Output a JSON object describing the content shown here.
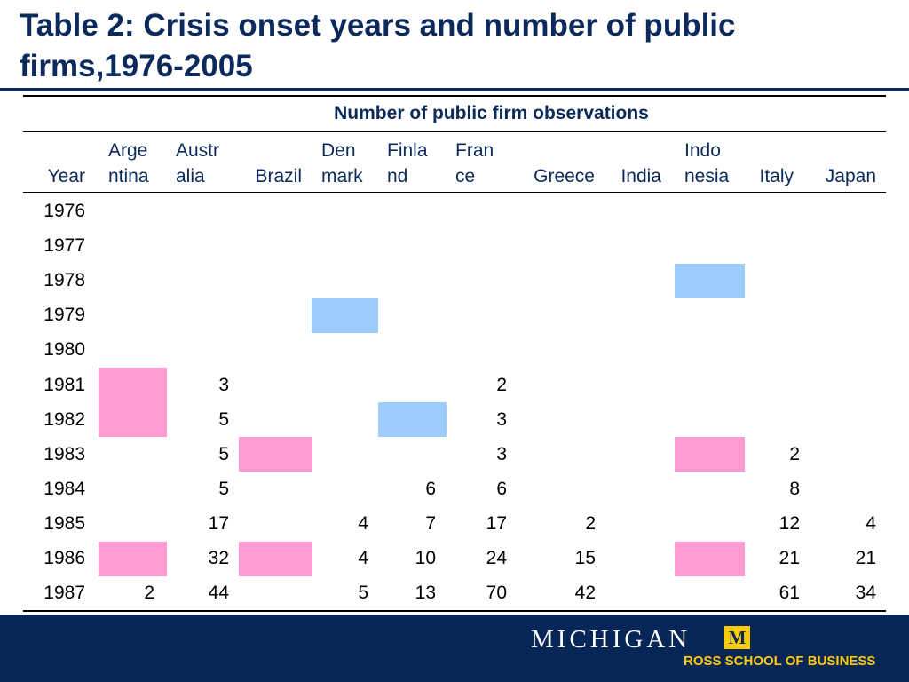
{
  "title": "Table 2: Crisis onset years and number of public firms,1976-2005",
  "table": {
    "group_header": "Number of public firm observations",
    "columns": [
      {
        "line1": "",
        "line2": "Year"
      },
      {
        "line1": "Arge",
        "line2": "ntina"
      },
      {
        "line1": "Austr",
        "line2": "alia"
      },
      {
        "line1": "",
        "line2": "Brazil"
      },
      {
        "line1": "Den",
        "line2": "mark"
      },
      {
        "line1": "Finla",
        "line2": "nd"
      },
      {
        "line1": "Fran",
        "line2": "ce"
      },
      {
        "line1": "",
        "line2": "Greece"
      },
      {
        "line1": "",
        "line2": "India"
      },
      {
        "line1": "Indo",
        "line2": "nesia"
      },
      {
        "line1": "",
        "line2": "Italy"
      },
      {
        "line1": "",
        "line2": "Japan"
      }
    ],
    "rows": [
      {
        "year": "1976",
        "values": [
          "",
          "",
          "",
          "",
          "",
          "",
          "",
          "",
          "",
          "",
          ""
        ]
      },
      {
        "year": "1977",
        "values": [
          "",
          "",
          "",
          "",
          "",
          "",
          "",
          "",
          "",
          "",
          ""
        ]
      },
      {
        "year": "1978",
        "values": [
          "",
          "",
          "",
          "",
          "",
          "",
          "",
          "",
          "",
          "",
          ""
        ]
      },
      {
        "year": "1979",
        "values": [
          "",
          "",
          "",
          "",
          "",
          "",
          "",
          "",
          "",
          "",
          ""
        ]
      },
      {
        "year": "1980",
        "values": [
          "",
          "",
          "",
          "",
          "",
          "",
          "",
          "",
          "",
          "",
          ""
        ]
      },
      {
        "year": "1981",
        "values": [
          "",
          "3",
          "",
          "",
          "",
          "2",
          "",
          "",
          "",
          "",
          ""
        ]
      },
      {
        "year": "1982",
        "values": [
          "",
          "5",
          "",
          "",
          "",
          "3",
          "",
          "",
          "",
          "",
          ""
        ]
      },
      {
        "year": "1983",
        "values": [
          "",
          "5",
          "",
          "",
          "",
          "3",
          "",
          "",
          "",
          "2",
          ""
        ]
      },
      {
        "year": "1984",
        "values": [
          "",
          "5",
          "",
          "",
          "6",
          "6",
          "",
          "",
          "",
          "8",
          ""
        ]
      },
      {
        "year": "1985",
        "values": [
          "",
          "17",
          "",
          "4",
          "7",
          "17",
          "2",
          "",
          "",
          "12",
          "4"
        ]
      },
      {
        "year": "1986",
        "values": [
          "",
          "32",
          "",
          "4",
          "10",
          "24",
          "15",
          "",
          "",
          "21",
          "21"
        ]
      },
      {
        "year": "1987",
        "values": [
          "2",
          "44",
          "",
          "5",
          "13",
          "70",
          "42",
          "",
          "",
          "61",
          "34"
        ]
      }
    ],
    "highlights": [
      {
        "year": "1978",
        "country": "Indonesia",
        "color": "#9dcdff"
      },
      {
        "year": "1979",
        "country": "Denmark",
        "color": "#9dcdff"
      },
      {
        "year": "1981",
        "country": "Argentina",
        "color": "#ff9bd2"
      },
      {
        "year": "1982",
        "country": "Argentina",
        "color": "#ff9bd2"
      },
      {
        "year": "1982",
        "country": "Finland",
        "color": "#9dcdff"
      },
      {
        "year": "1983",
        "country": "Brazil",
        "color": "#ff9bd2"
      },
      {
        "year": "1983",
        "country": "Indonesia",
        "color": "#ff9bd2"
      },
      {
        "year": "1986",
        "country": "Argentina",
        "color": "#ff9bd2"
      },
      {
        "year": "1986",
        "country": "Brazil",
        "color": "#ff9bd2"
      },
      {
        "year": "1986",
        "country": "Indonesia",
        "color": "#ff9bd2"
      }
    ]
  },
  "footer": {
    "brand": "MICHIGAN",
    "logo_letter": "M",
    "school": "ROSS SCHOOL OF BUSINESS",
    "bg_color": "#062658",
    "accent_color": "#ffcb05"
  }
}
